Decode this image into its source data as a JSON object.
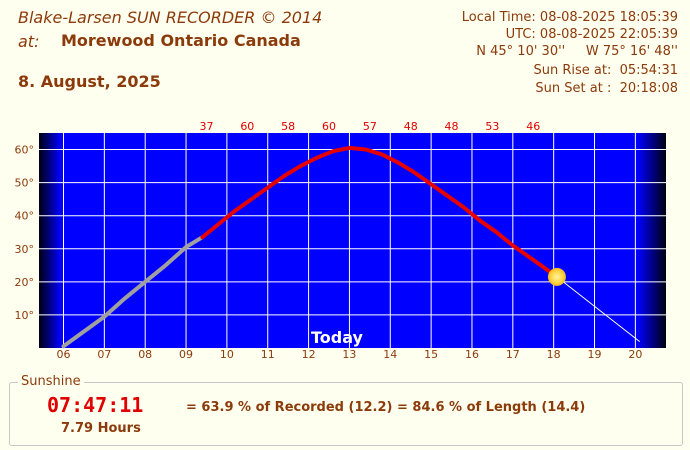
{
  "header": {
    "title": "Blake-Larsen SUN RECORDER © 2014",
    "at_label": "at:",
    "location": "Morewood Ontario Canada",
    "date": "8. August, 2025",
    "local_time": "Local Time: 08-08-2025 18:05:39",
    "utc_time": "UTC: 08-08-2025 22:05:39",
    "coords": "N 45° 10' 30''     W 75° 16' 48''",
    "sunrise": "Sun Rise at:  05:54:31",
    "sunset": "Sun Set at :  20:18:08"
  },
  "sunshine": {
    "legend": "Sunshine",
    "duration": "07:47:11",
    "hours": "7.79 Hours",
    "ratio": "= 63.9 % of Recorded (12.2) = 84.6 % of Length (14.4)"
  },
  "colors": {
    "sky": "#0000ff",
    "sunshine_line": "#e60000",
    "recorded_line": "#a0a0a0",
    "sun": "#ffd84a",
    "label_text": "#8b3a0a",
    "top_numbers": "#e00000"
  },
  "chart_data": {
    "type": "line",
    "title": "",
    "xlabel": "",
    "ylabel": "",
    "x_ticks": [
      "06",
      "07",
      "08",
      "09",
      "10",
      "11",
      "12",
      "13",
      "14",
      "15",
      "16",
      "17",
      "18",
      "19",
      "20"
    ],
    "y_ticks": [
      "10°",
      "20°",
      "30°",
      "40°",
      "50°",
      "60°"
    ],
    "xlim": [
      5.4,
      20.75
    ],
    "ylim": [
      0,
      65
    ],
    "grid": true,
    "today_label": "Today",
    "top_values": [
      {
        "x": 9.5,
        "label": "37"
      },
      {
        "x": 10.5,
        "label": "60"
      },
      {
        "x": 11.5,
        "label": "58"
      },
      {
        "x": 12.5,
        "label": "60"
      },
      {
        "x": 13.5,
        "label": "57"
      },
      {
        "x": 14.5,
        "label": "48"
      },
      {
        "x": 15.5,
        "label": "48"
      },
      {
        "x": 16.5,
        "label": "53"
      },
      {
        "x": 17.5,
        "label": "46"
      }
    ],
    "series": [
      {
        "type": "recorded",
        "x": [
          6.0,
          6.5,
          7.0,
          7.5,
          8.0,
          8.5,
          9.0,
          9.4
        ],
        "y": [
          0.5,
          5.0,
          9.5,
          15.0,
          20.0,
          25.0,
          30.5,
          33.5
        ]
      },
      {
        "type": "sunshine",
        "x": [
          9.4,
          9.8,
          10.2,
          10.6,
          11.0,
          11.4,
          11.8,
          12.2,
          12.6,
          13.0,
          13.4,
          13.8,
          14.2,
          14.6,
          15.0,
          15.4,
          15.8,
          16.2,
          16.6,
          17.0,
          17.4,
          17.8,
          18.08
        ],
        "y": [
          33.5,
          37.5,
          41.5,
          45.0,
          48.5,
          52.0,
          55.0,
          57.5,
          59.5,
          60.5,
          60.0,
          58.5,
          56.0,
          53.0,
          49.5,
          46.0,
          42.5,
          38.5,
          35.0,
          31.0,
          27.5,
          24.0,
          21.5
        ]
      },
      {
        "type": "remaining",
        "x": [
          18.08,
          20.1
        ],
        "y": [
          21.5,
          2.0
        ]
      }
    ],
    "sun_position": {
      "x": 18.08,
      "y": 21.5
    }
  }
}
